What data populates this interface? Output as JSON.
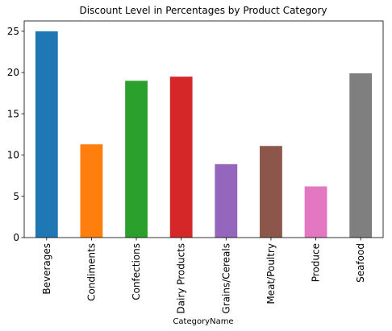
{
  "chart_data": {
    "type": "bar",
    "title": "Discount Level in Percentages by Product Category",
    "xlabel": "CategoryName",
    "ylabel": "",
    "categories": [
      "Beverages",
      "Condiments",
      "Confections",
      "Dairy Products",
      "Grains/Cereals",
      "Meat/Poultry",
      "Produce",
      "Seafood"
    ],
    "values": [
      25.0,
      11.3,
      19.0,
      19.5,
      8.9,
      11.1,
      6.2,
      19.9
    ],
    "colors": [
      "#1f77b4",
      "#ff7f0e",
      "#2ca02c",
      "#d62728",
      "#9467bd",
      "#8c564b",
      "#e377c2",
      "#7f7f7f"
    ],
    "ylim": [
      0,
      26.25
    ],
    "yticks": [
      0,
      5,
      10,
      15,
      20,
      25
    ],
    "grid": false,
    "legend": "none"
  }
}
